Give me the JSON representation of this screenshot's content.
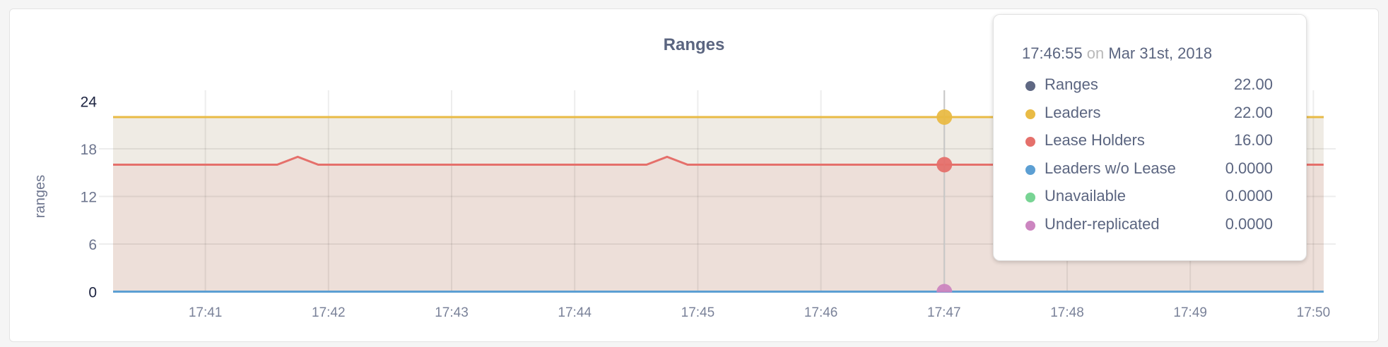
{
  "chart_data": {
    "type": "area",
    "title": "Ranges",
    "ylabel": "ranges",
    "xlabel": "",
    "ylim": [
      0,
      24
    ],
    "yticks": [
      "0",
      "6",
      "12",
      "18",
      "24"
    ],
    "xlim": [
      "17:40:15",
      "17:50:06"
    ],
    "xticks": [
      "17:41",
      "17:42",
      "17:43",
      "17:44",
      "17:45",
      "17:46",
      "17:47",
      "17:48",
      "17:49",
      "17:50"
    ],
    "grid": true,
    "series": [
      {
        "name": "Ranges",
        "color": "#5f6883",
        "points": [
          [
            "17:40:15",
            22
          ],
          [
            "17:50:05",
            22
          ]
        ]
      },
      {
        "name": "Leaders",
        "color": "#e9bb45",
        "points": [
          [
            "17:40:15",
            22
          ],
          [
            "17:50:05",
            22
          ]
        ]
      },
      {
        "name": "Lease Holders",
        "color": "#e5706b",
        "points": [
          [
            "17:40:15",
            16
          ],
          [
            "17:41:35",
            16
          ],
          [
            "17:41:45",
            17
          ],
          [
            "17:41:55",
            16
          ],
          [
            "17:44:35",
            16
          ],
          [
            "17:44:45",
            17
          ],
          [
            "17:44:55",
            16
          ],
          [
            "17:50:05",
            16
          ]
        ]
      },
      {
        "name": "Leaders w/o Lease",
        "color": "#5c9fd3",
        "points": [
          [
            "17:40:15",
            0
          ],
          [
            "17:50:05",
            0
          ]
        ]
      },
      {
        "name": "Unavailable",
        "color": "#78d494",
        "points": [
          [
            "17:40:15",
            0
          ],
          [
            "17:50:05",
            0
          ]
        ]
      },
      {
        "name": "Under-replicated",
        "color": "#cc85c0",
        "points": [
          [
            "17:40:15",
            0
          ],
          [
            "17:50:05",
            0
          ]
        ]
      }
    ],
    "fills": {
      "leaders": "#efebe4",
      "lease_holders": "#eddfd9"
    }
  },
  "tooltip": {
    "time": "17:46:55",
    "on": "on",
    "date": "Mar 31st, 2018",
    "rows": [
      {
        "label": "Ranges",
        "value": "22.00",
        "color": "#5f6883"
      },
      {
        "label": "Leaders",
        "value": "22.00",
        "color": "#e9bb45"
      },
      {
        "label": "Lease Holders",
        "value": "16.00",
        "color": "#e5706b"
      },
      {
        "label": "Leaders w/o Lease",
        "value": "0.0000",
        "color": "#5c9fd3"
      },
      {
        "label": "Unavailable",
        "value": "0.0000",
        "color": "#78d494"
      },
      {
        "label": "Under-replicated",
        "value": "0.0000",
        "color": "#cc85c0"
      }
    ]
  }
}
